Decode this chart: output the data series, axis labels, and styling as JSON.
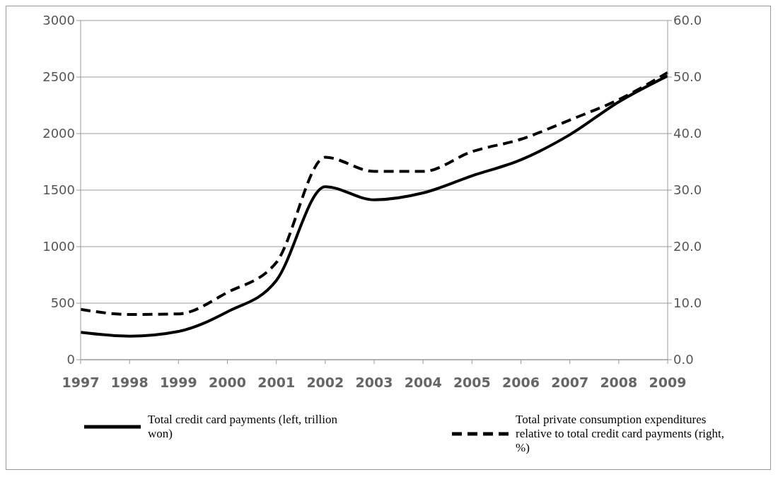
{
  "chart_data": {
    "type": "line",
    "categories": [
      "1997",
      "1998",
      "1999",
      "2000",
      "2001",
      "2002",
      "2003",
      "2004",
      "2005",
      "2006",
      "2007",
      "2008",
      "2009"
    ],
    "series": [
      {
        "name": "Total credit card payments (left, trillion won)",
        "color": "#000000",
        "line_style": "solid",
        "values": [
          242,
          208,
          250,
          424,
          700,
          1530,
          1414,
          1475,
          1626,
          1768,
          1990,
          2280,
          2510
        ]
      },
      {
        "name": "Total private consumption expenditures relative to total credit card payments (right, %)",
        "color": "#000000",
        "line_style": "dashed",
        "axis": "y2",
        "values": [
          8.9,
          8.0,
          8.1,
          11.9,
          17.2,
          35.8,
          33.3,
          33.3,
          36.8,
          39.0,
          42.4,
          46.0,
          50.8
        ]
      }
    ],
    "ylim": [
      0,
      3000
    ],
    "yticks": [
      0,
      500,
      1000,
      1500,
      2000,
      2500,
      3000
    ],
    "y2lim": [
      0,
      60
    ],
    "y2ticks": [
      {
        "value": 0,
        "label": "0.0"
      },
      {
        "value": 10,
        "label": "10.0"
      },
      {
        "value": 20,
        "label": "20.0"
      },
      {
        "value": 30,
        "label": "30.0"
      },
      {
        "value": 40,
        "label": "40.0"
      },
      {
        "value": 50,
        "label": "50.0"
      },
      {
        "value": 60,
        "label": "60.0"
      }
    ],
    "grid": "y",
    "legend": "bottom",
    "marker": "none"
  }
}
